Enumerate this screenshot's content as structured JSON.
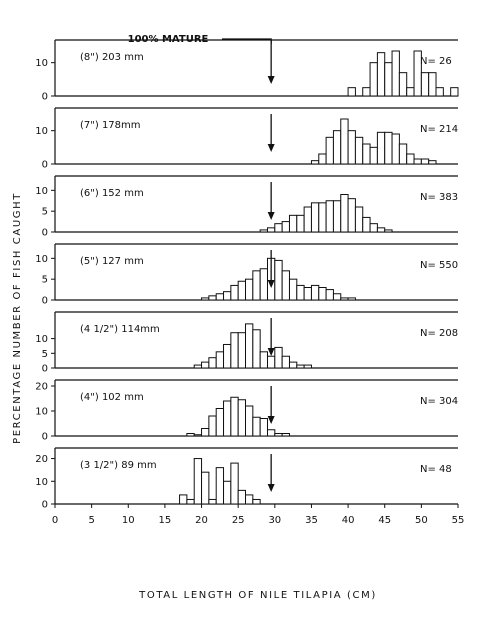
{
  "chart_data": {
    "type": "bar",
    "xlabel": "TOTAL LENGTH OF NILE TILAPIA (CM)",
    "ylabel": "PERCENTAGE NUMBER OF FISH CAUGHT",
    "xlim": [
      0,
      55
    ],
    "xticks": [
      "0",
      "5",
      "10",
      "15",
      "20",
      "25",
      "30",
      "35",
      "40",
      "45",
      "50",
      "55"
    ],
    "bin_width_cm": 1,
    "annotation": "100% MATURE",
    "panels": [
      {
        "label": "(8\")  203 mm",
        "n_label": "N= 26",
        "ylim": [
          0,
          15
        ],
        "yticks": [
          "0",
          "10"
        ],
        "mature_at": 29.5,
        "bins": [
          {
            "x": 41,
            "y": 2.5
          },
          {
            "x": 42,
            "y": 0
          },
          {
            "x": 43,
            "y": 2.5
          },
          {
            "x": 44,
            "y": 10
          },
          {
            "x": 45,
            "y": 13
          },
          {
            "x": 46,
            "y": 10
          },
          {
            "x": 47,
            "y": 13.5
          },
          {
            "x": 48,
            "y": 7
          },
          {
            "x": 49,
            "y": 2.5
          },
          {
            "x": 50,
            "y": 13.5
          },
          {
            "x": 51,
            "y": 7
          },
          {
            "x": 52,
            "y": 7
          },
          {
            "x": 53,
            "y": 2.5
          },
          {
            "x": 54,
            "y": 0
          },
          {
            "x": 55,
            "y": 2.5
          }
        ]
      },
      {
        "label": "(7\")  178mm",
        "n_label": "N= 214",
        "ylim": [
          0,
          15
        ],
        "yticks": [
          "0",
          "10"
        ],
        "mature_at": 29.5,
        "bins": [
          {
            "x": 36,
            "y": 1
          },
          {
            "x": 37,
            "y": 3
          },
          {
            "x": 38,
            "y": 8
          },
          {
            "x": 39,
            "y": 10
          },
          {
            "x": 40,
            "y": 13.5
          },
          {
            "x": 41,
            "y": 10
          },
          {
            "x": 42,
            "y": 8
          },
          {
            "x": 43,
            "y": 6
          },
          {
            "x": 44,
            "y": 5
          },
          {
            "x": 45,
            "y": 9.5
          },
          {
            "x": 46,
            "y": 9.5
          },
          {
            "x": 47,
            "y": 9
          },
          {
            "x": 48,
            "y": 6
          },
          {
            "x": 49,
            "y": 3
          },
          {
            "x": 50,
            "y": 1.5
          },
          {
            "x": 51,
            "y": 1.5
          },
          {
            "x": 52,
            "y": 1
          }
        ]
      },
      {
        "label": "(6\")  152 mm",
        "n_label": "N= 383",
        "ylim": [
          0,
          12
        ],
        "yticks": [
          "0",
          "5",
          "10"
        ],
        "mature_at": 29.5,
        "bins": [
          {
            "x": 29,
            "y": 0.5
          },
          {
            "x": 30,
            "y": 1
          },
          {
            "x": 31,
            "y": 2
          },
          {
            "x": 32,
            "y": 2.5
          },
          {
            "x": 33,
            "y": 4
          },
          {
            "x": 34,
            "y": 4
          },
          {
            "x": 35,
            "y": 6
          },
          {
            "x": 36,
            "y": 7
          },
          {
            "x": 37,
            "y": 7
          },
          {
            "x": 38,
            "y": 7.5
          },
          {
            "x": 39,
            "y": 7.5
          },
          {
            "x": 40,
            "y": 9
          },
          {
            "x": 41,
            "y": 8
          },
          {
            "x": 42,
            "y": 6
          },
          {
            "x": 43,
            "y": 3.5
          },
          {
            "x": 44,
            "y": 2
          },
          {
            "x": 45,
            "y": 1
          },
          {
            "x": 46,
            "y": 0.5
          }
        ]
      },
      {
        "label": "(5\")  127 mm",
        "n_label": "N= 550",
        "ylim": [
          0,
          12
        ],
        "yticks": [
          "0",
          "5",
          "10"
        ],
        "mature_at": 29.5,
        "bins": [
          {
            "x": 21,
            "y": 0.5
          },
          {
            "x": 22,
            "y": 1
          },
          {
            "x": 23,
            "y": 1.5
          },
          {
            "x": 24,
            "y": 2
          },
          {
            "x": 25,
            "y": 3.5
          },
          {
            "x": 26,
            "y": 4.5
          },
          {
            "x": 27,
            "y": 5
          },
          {
            "x": 28,
            "y": 7
          },
          {
            "x": 29,
            "y": 7.5
          },
          {
            "x": 30,
            "y": 10
          },
          {
            "x": 31,
            "y": 9.5
          },
          {
            "x": 32,
            "y": 7
          },
          {
            "x": 33,
            "y": 5
          },
          {
            "x": 34,
            "y": 3.5
          },
          {
            "x": 35,
            "y": 3
          },
          {
            "x": 36,
            "y": 3.5
          },
          {
            "x": 37,
            "y": 3
          },
          {
            "x": 38,
            "y": 2.5
          },
          {
            "x": 39,
            "y": 1.5
          },
          {
            "x": 40,
            "y": 0.5
          },
          {
            "x": 41,
            "y": 0.5
          }
        ]
      },
      {
        "label": "(4 1/2\")  114mm",
        "n_label": "N= 208",
        "ylim": [
          0,
          17
        ],
        "yticks": [
          "0",
          "5",
          "10"
        ],
        "mature_at": 29.5,
        "bins": [
          {
            "x": 20,
            "y": 1
          },
          {
            "x": 21,
            "y": 2
          },
          {
            "x": 22,
            "y": 3.5
          },
          {
            "x": 23,
            "y": 5.5
          },
          {
            "x": 24,
            "y": 8
          },
          {
            "x": 25,
            "y": 12
          },
          {
            "x": 26,
            "y": 12
          },
          {
            "x": 27,
            "y": 15
          },
          {
            "x": 28,
            "y": 13
          },
          {
            "x": 29,
            "y": 5.5
          },
          {
            "x": 30,
            "y": 4
          },
          {
            "x": 31,
            "y": 7
          },
          {
            "x": 32,
            "y": 4
          },
          {
            "x": 33,
            "y": 2
          },
          {
            "x": 34,
            "y": 1
          },
          {
            "x": 35,
            "y": 1
          }
        ]
      },
      {
        "label": "(4\")  102 mm",
        "n_label": "N= 304",
        "ylim": [
          0,
          20
        ],
        "yticks": [
          "0",
          "10",
          "20"
        ],
        "mature_at": 29.5,
        "bins": [
          {
            "x": 19,
            "y": 1
          },
          {
            "x": 20,
            "y": 0.5
          },
          {
            "x": 21,
            "y": 3
          },
          {
            "x": 22,
            "y": 8
          },
          {
            "x": 23,
            "y": 11
          },
          {
            "x": 24,
            "y": 14
          },
          {
            "x": 25,
            "y": 15.5
          },
          {
            "x": 26,
            "y": 14.5
          },
          {
            "x": 27,
            "y": 12
          },
          {
            "x": 28,
            "y": 7.5
          },
          {
            "x": 29,
            "y": 7
          },
          {
            "x": 30,
            "y": 2.5
          },
          {
            "x": 31,
            "y": 1
          },
          {
            "x": 32,
            "y": 1
          }
        ]
      },
      {
        "label": "(3 1/2\")  89 mm",
        "n_label": "N= 48",
        "ylim": [
          0,
          22
        ],
        "yticks": [
          "0",
          "10",
          "20"
        ],
        "mature_at": 29.5,
        "bins": [
          {
            "x": 18,
            "y": 4
          },
          {
            "x": 19,
            "y": 2
          },
          {
            "x": 20,
            "y": 20
          },
          {
            "x": 21,
            "y": 14
          },
          {
            "x": 22,
            "y": 2
          },
          {
            "x": 23,
            "y": 16
          },
          {
            "x": 24,
            "y": 10
          },
          {
            "x": 25,
            "y": 18
          },
          {
            "x": 26,
            "y": 6
          },
          {
            "x": 27,
            "y": 4
          },
          {
            "x": 28,
            "y": 2
          }
        ]
      }
    ]
  }
}
